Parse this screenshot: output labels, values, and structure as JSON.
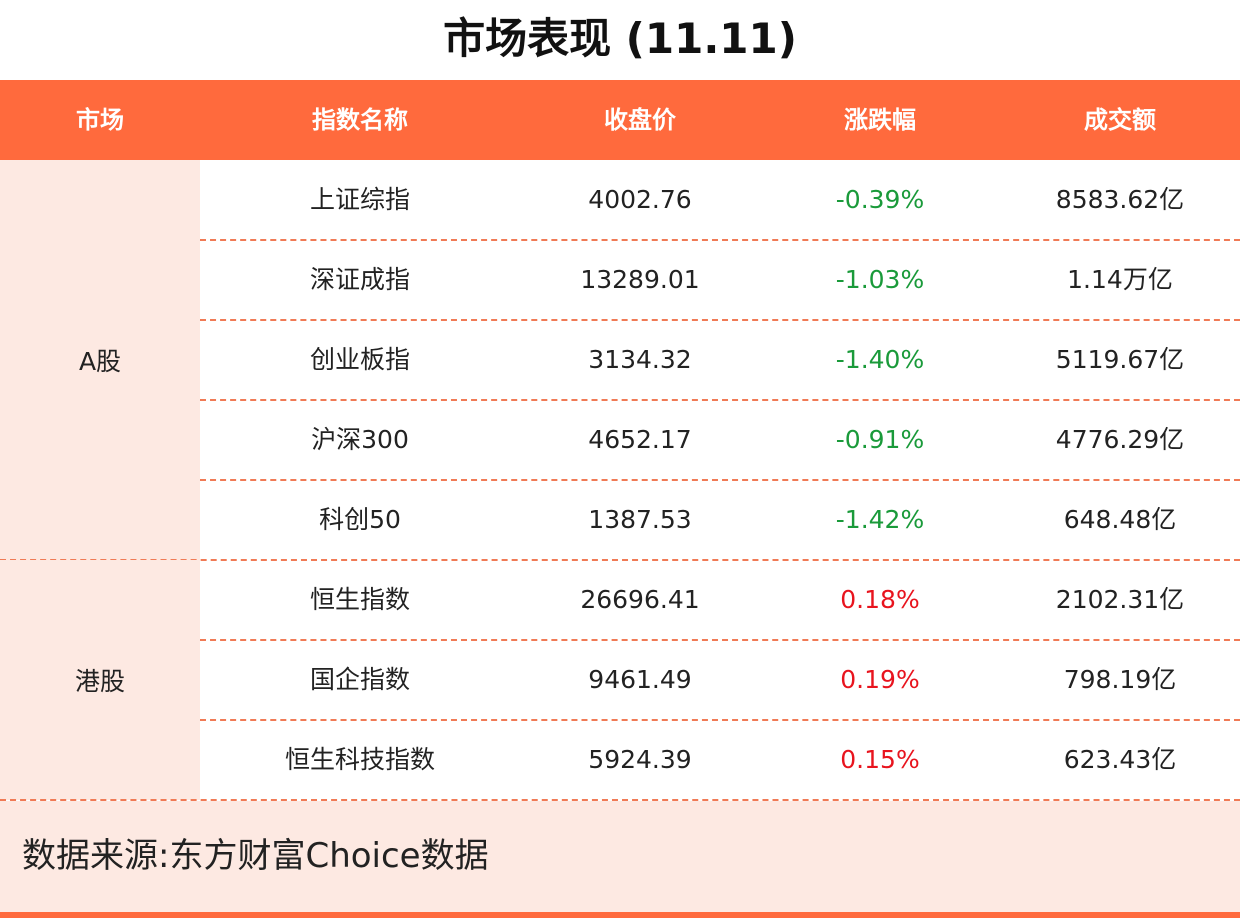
{
  "title": "市场表现 (11.11)",
  "table": {
    "header": [
      "市场",
      "指数名称",
      "收盘价",
      "涨跌幅",
      "成交额"
    ],
    "groups": [
      {
        "market": "A股",
        "rows": [
          [
            "上证综指",
            "4002.76",
            "-0.39%",
            "8583.62亿"
          ],
          [
            "深证成指",
            "13289.01",
            "-1.03%",
            "1.14万亿"
          ],
          [
            "创业板指",
            "3134.32",
            "-1.40%",
            "5119.67亿"
          ],
          [
            "沪深300",
            "4652.17",
            "-0.91%",
            "4776.29亿"
          ],
          [
            "科创50",
            "1387.53",
            "-1.42%",
            "648.48亿"
          ]
        ]
      },
      {
        "market": "港股",
        "rows": [
          [
            "恒生指数",
            "26696.41",
            "0.18%",
            "2102.31亿"
          ],
          [
            "国企指数",
            "9461.49",
            "0.19%",
            "798.19亿"
          ],
          [
            "恒生科技指数",
            "5924.39",
            "0.15%",
            "623.43亿"
          ]
        ]
      }
    ]
  },
  "source": "数据来源:东方财富Choice数据"
}
